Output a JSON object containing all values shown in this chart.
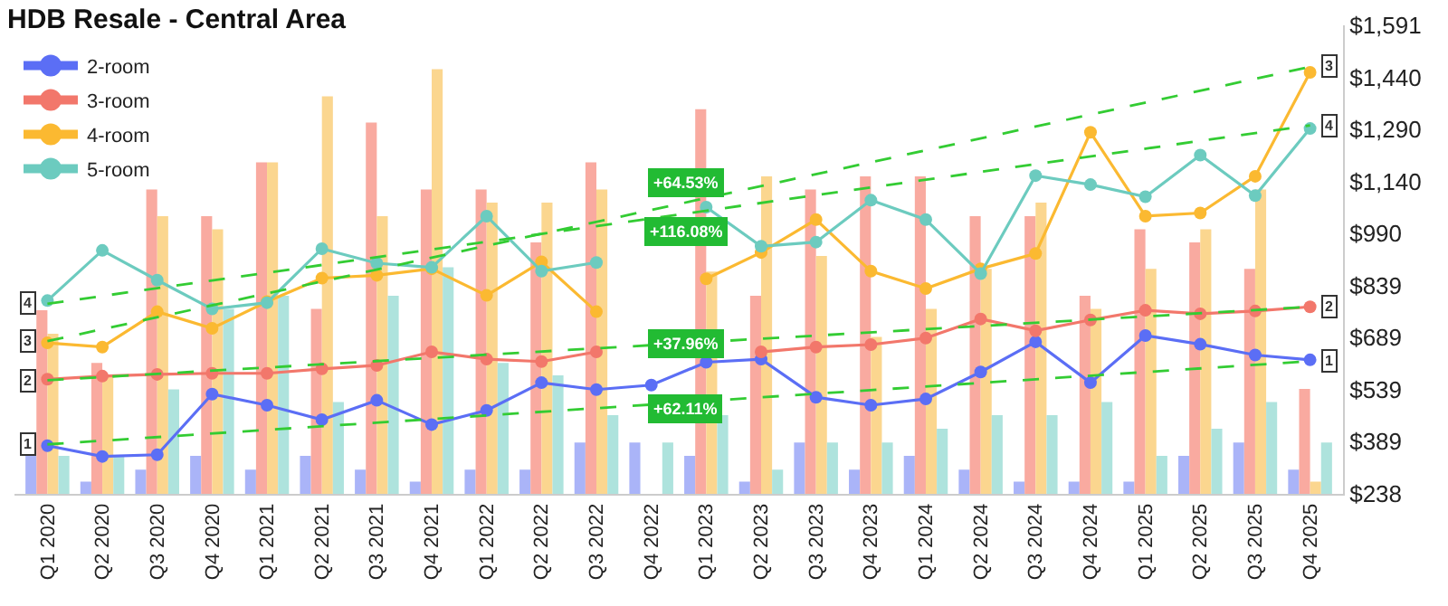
{
  "chart_data": {
    "type": "bar",
    "title": "HDB Resale - Central Area",
    "categories": [
      "Q1 2020",
      "Q2 2020",
      "Q3 2020",
      "Q4 2020",
      "Q1 2021",
      "Q2 2021",
      "Q3 2021",
      "Q4 2021",
      "Q1 2022",
      "Q2 2022",
      "Q3 2022",
      "Q4 2022",
      "Q1 2023",
      "Q2 2023",
      "Q3 2023",
      "Q4 2023",
      "Q1 2024",
      "Q2 2024",
      "Q3 2024",
      "Q4 2024",
      "Q1 2025",
      "Q2 2025",
      "Q3 2025",
      "Q4 2025"
    ],
    "series": [
      {
        "color": "#aab4f8",
        "values": [
          348,
          273,
          308,
          348,
          308,
          348,
          308,
          273,
          308,
          308,
          386,
          386,
          348,
          273,
          386,
          308,
          348,
          308,
          273,
          273,
          273,
          348,
          386,
          308
        ]
      },
      {
        "color": "#f9aaa0",
        "values": [
          768,
          616,
          1117,
          1040,
          1195,
          772,
          1310,
          1117,
          1117,
          964,
          1195,
          null,
          1349,
          810,
          1117,
          1155,
          1155,
          1040,
          1040,
          810,
          1002,
          964,
          888,
          541
        ]
      },
      {
        "color": "#fbd68f",
        "values": [
          700,
          578,
          1040,
          1002,
          1195,
          1386,
          1040,
          1464,
          1079,
          1079,
          1117,
          null,
          880,
          1155,
          925,
          691,
          772,
          888,
          1079,
          772,
          888,
          1002,
          1117,
          273
        ]
      },
      {
        "color": "#aee3dd",
        "values": [
          348,
          348,
          540,
          772,
          810,
          503,
          810,
          892,
          616,
          580,
          465,
          386,
          465,
          308,
          386,
          386,
          426,
          465,
          465,
          503,
          348,
          426,
          503,
          386
        ]
      },
      {
        "type": "line",
        "name": "2-room",
        "color": "#5b6ef5",
        "marker": "circle",
        "values": [
          377,
          346,
          351,
          526,
          494,
          452,
          508,
          438,
          479,
          559,
          539,
          552,
          618,
          627,
          517,
          494,
          512,
          590,
          677,
          559,
          695,
          670,
          639,
          625
        ]
      },
      {
        "type": "line",
        "name": "3-room",
        "color": "#f2776b",
        "marker": "circle",
        "values": [
          569,
          578,
          583,
          586,
          586,
          599,
          609,
          648,
          627,
          620,
          648,
          null,
          null,
          648,
          662,
          669,
          688,
          743,
          709,
          740,
          768,
          758,
          766,
          778
        ]
      },
      {
        "type": "line",
        "name": "4-room",
        "color": "#fbb931",
        "marker": "circle",
        "values": [
          674,
          662,
          764,
          716,
          793,
          861,
          869,
          888,
          811,
          908,
          764,
          null,
          859,
          935,
          1030,
          881,
          831,
          888,
          932,
          1282,
          1040,
          1049,
          1155,
          1455
        ]
      },
      {
        "type": "line",
        "name": "5-room",
        "color": "#6ccbbf",
        "marker": "circle",
        "values": [
          796,
          941,
          855,
          772,
          790,
          946,
          904,
          892,
          1040,
          881,
          906,
          null,
          1066,
          953,
          965,
          1086,
          1030,
          874,
          1157,
          1131,
          1096,
          1216,
          1099,
          1293
        ]
      },
      {
        "type": "line",
        "color": "#33cc33",
        "line_style": "dashed",
        "x": [
          "Q1 2020",
          "Q4 2025"
        ],
        "values": [
          381,
          621
        ]
      },
      {
        "type": "line",
        "color": "#33cc33",
        "line_style": "dashed",
        "x": [
          "Q1 2020",
          "Q4 2025"
        ],
        "values": [
          566,
          778
        ]
      },
      {
        "type": "line",
        "color": "#33cc33",
        "line_style": "dashed",
        "x": [
          "Q1 2020",
          "Q4 2025"
        ],
        "values": [
          679,
          1471
        ]
      },
      {
        "type": "line",
        "color": "#33cc33",
        "line_style": "dashed",
        "x": [
          "Q1 2020",
          "Q4 2025"
        ],
        "values": [
          787,
          1302
        ]
      }
    ],
    "ylim": [
      238,
      1591
    ],
    "yticks": [
      {
        "value": 238,
        "label": "$238"
      },
      {
        "value": 389,
        "label": "$389"
      },
      {
        "value": 539,
        "label": "$539"
      },
      {
        "value": 689,
        "label": "$689"
      },
      {
        "value": 839,
        "label": "$839"
      },
      {
        "value": 990,
        "label": "$990"
      },
      {
        "value": 1140,
        "label": "$1,140"
      },
      {
        "value": 1290,
        "label": "$1,290"
      },
      {
        "value": 1440,
        "label": "$1,440"
      },
      {
        "value": 1591,
        "label": "$1,591"
      }
    ],
    "annotations": [
      {
        "text": "1",
        "x": "Q1 2020",
        "y": 381
      },
      {
        "text": "2",
        "x": "Q1 2020",
        "y": 566
      },
      {
        "text": "3",
        "x": "Q1 2020",
        "y": 679
      },
      {
        "text": "4",
        "x": "Q1 2020",
        "y": 787
      },
      {
        "text": "1",
        "x": "Q4 2025",
        "y": 621
      },
      {
        "text": "2",
        "x": "Q4 2025",
        "y": 778
      },
      {
        "text": "3",
        "x": "Q4 2025",
        "y": 1471
      },
      {
        "text": "4",
        "x": "Q4 2025",
        "y": 1302
      },
      "+64.53%",
      "+116.08%",
      "+37.96%",
      "+62.11%"
    ],
    "legend": "top left"
  }
}
